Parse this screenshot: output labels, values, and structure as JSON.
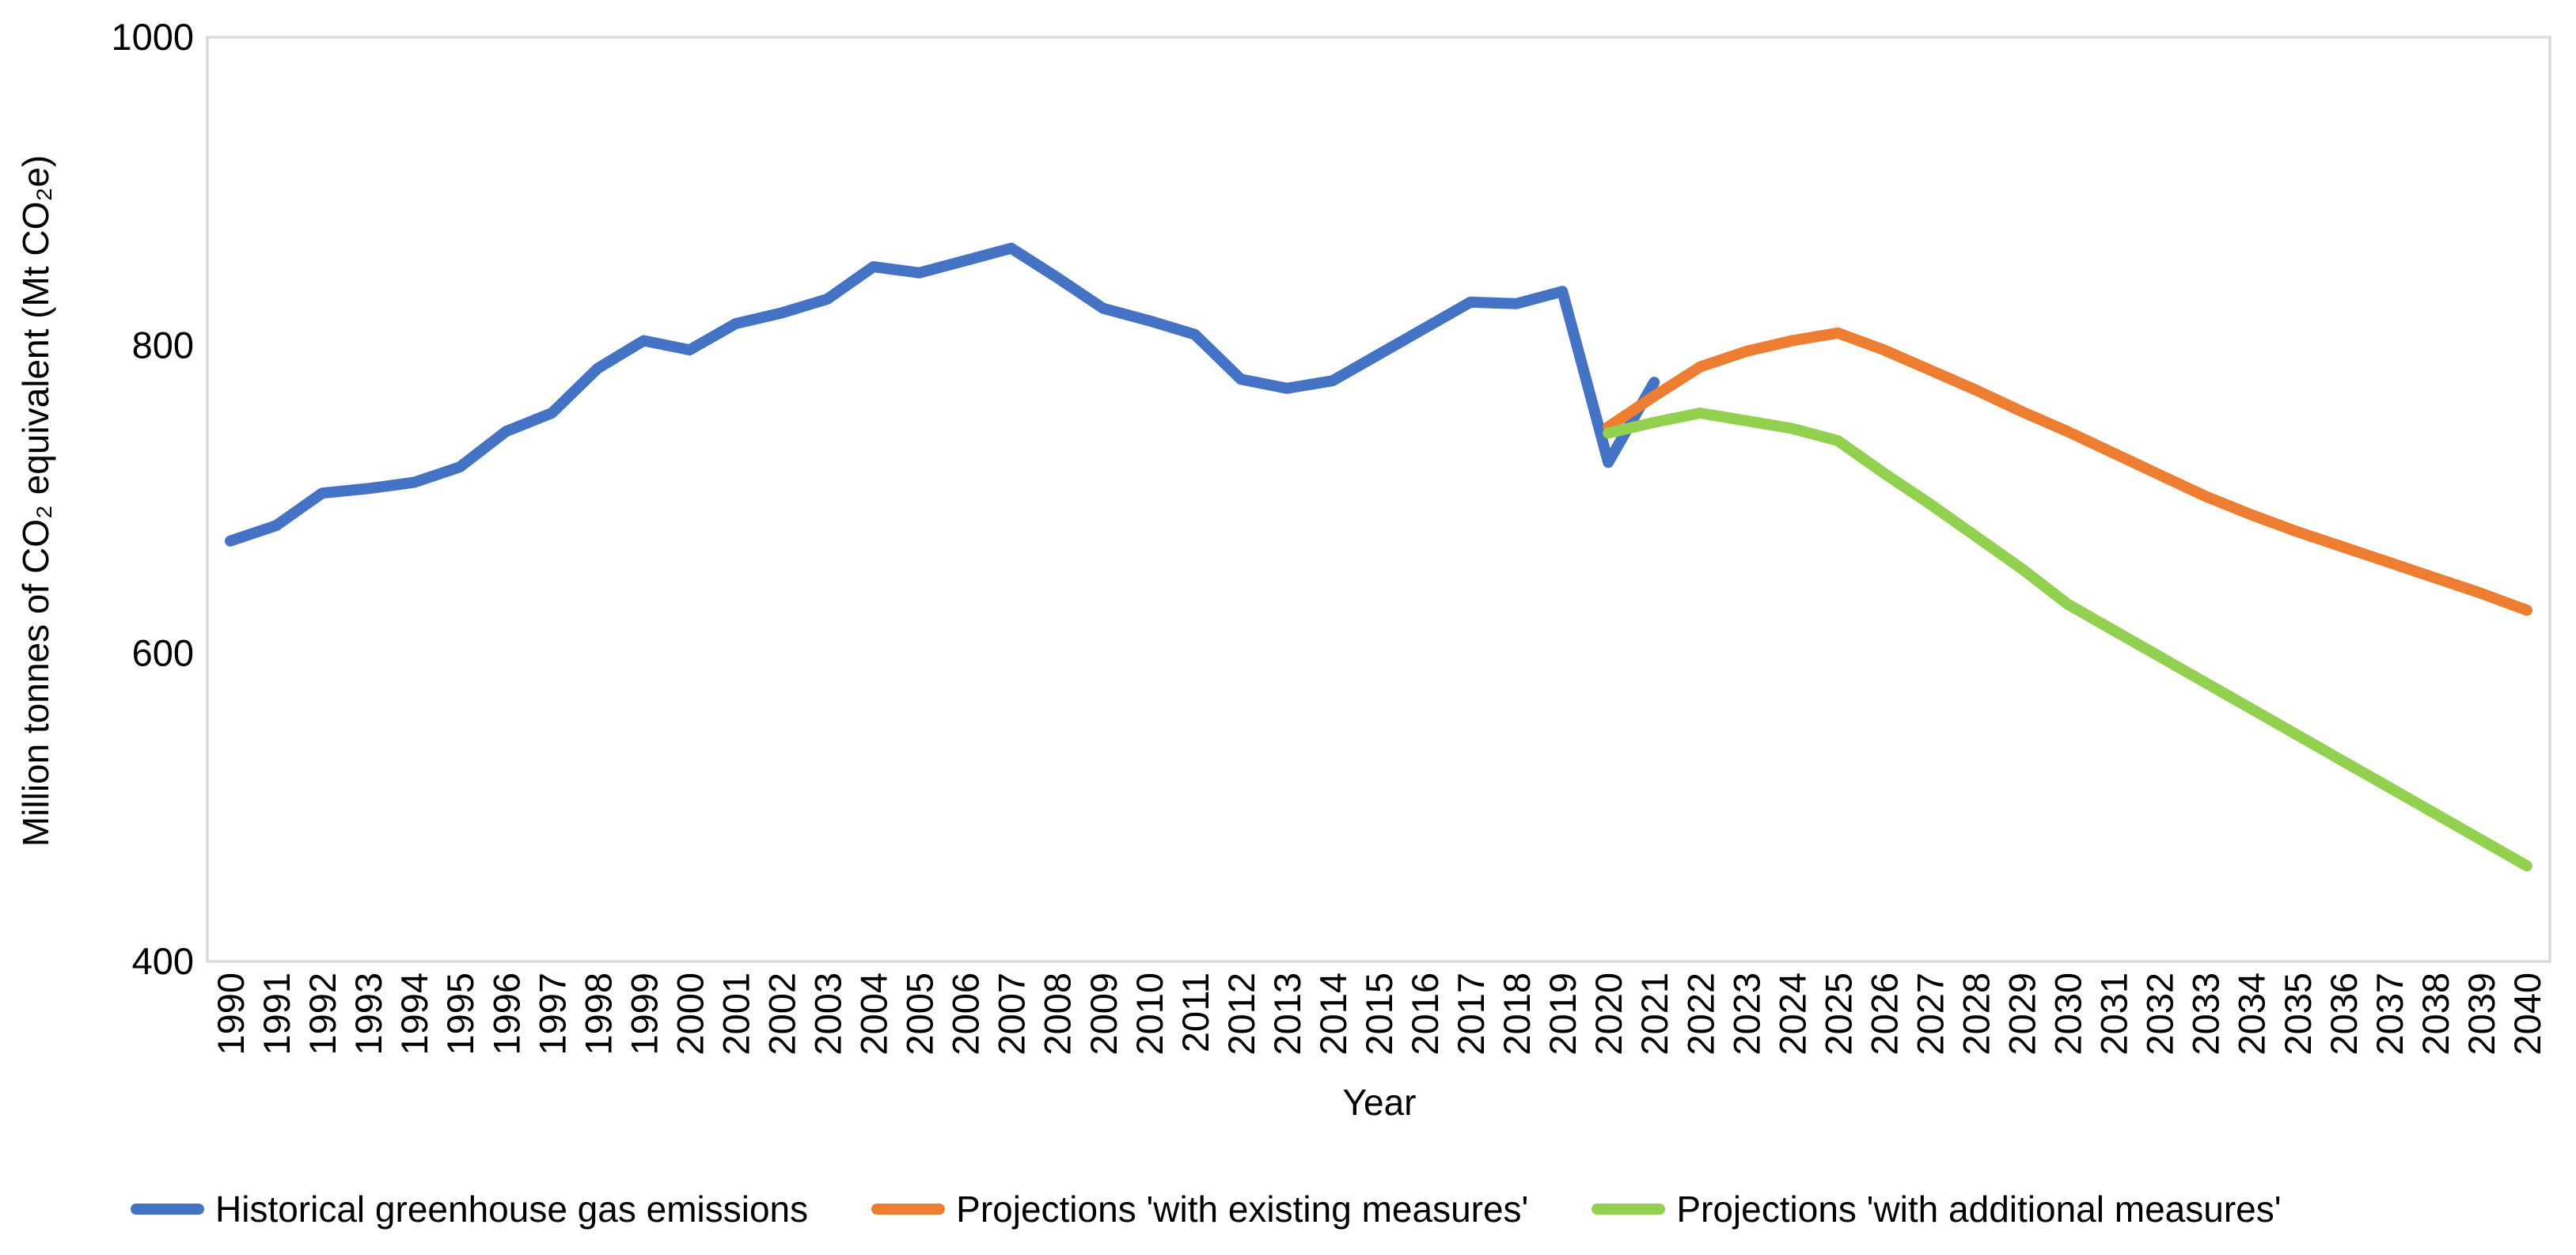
{
  "axes": {
    "x_title": "Year",
    "y_title": "Million tonnes of CO₂ equivalent (Mt CO₂e)"
  },
  "chart_data": {
    "type": "line",
    "title": "",
    "xlabel": "Year",
    "ylabel": "Million tonnes of CO₂ equivalent (Mt CO₂e)",
    "ylim": [
      400,
      1000
    ],
    "yticks": [
      400,
      600,
      800,
      1000
    ],
    "grid": false,
    "legend_position": "bottom",
    "plot_border_color": "#D9D9D9",
    "categories": [
      1990,
      1991,
      1992,
      1993,
      1994,
      1995,
      1996,
      1997,
      1998,
      1999,
      2000,
      2001,
      2002,
      2003,
      2004,
      2005,
      2006,
      2007,
      2008,
      2009,
      2010,
      2011,
      2012,
      2013,
      2014,
      2015,
      2016,
      2017,
      2018,
      2019,
      2020,
      2021,
      2022,
      2023,
      2024,
      2025,
      2026,
      2027,
      2028,
      2029,
      2030,
      2031,
      2032,
      2033,
      2034,
      2035,
      2036,
      2037,
      2038,
      2039,
      2040
    ],
    "series": [
      {
        "name": "Historical greenhouse gas emissions",
        "color": "#4472C4",
        "values": [
          673,
          683,
          704,
          707,
          711,
          721,
          744,
          756,
          785,
          803,
          797,
          814,
          821,
          830,
          851,
          847,
          855,
          863,
          844,
          824,
          816,
          807,
          778,
          772,
          777,
          794,
          811,
          828,
          827,
          835,
          724,
          776,
          null,
          null,
          null,
          null,
          null,
          null,
          null,
          null,
          null,
          null,
          null,
          null,
          null,
          null,
          null,
          null,
          null,
          null,
          null
        ]
      },
      {
        "name": "Projections 'with existing measures'",
        "color": "#ED7D31",
        "values": [
          null,
          null,
          null,
          null,
          null,
          null,
          null,
          null,
          null,
          null,
          null,
          null,
          null,
          null,
          null,
          null,
          null,
          null,
          null,
          null,
          null,
          null,
          null,
          null,
          null,
          null,
          null,
          null,
          null,
          null,
          747,
          767,
          786,
          796,
          803,
          808,
          797,
          784,
          771,
          757,
          744,
          730,
          716,
          702,
          690,
          679,
          669,
          659,
          649,
          639,
          628
        ]
      },
      {
        "name": "Projections 'with additional measures'",
        "color": "#92D050",
        "values": [
          null,
          null,
          null,
          null,
          null,
          null,
          null,
          null,
          null,
          null,
          null,
          null,
          null,
          null,
          null,
          null,
          null,
          null,
          null,
          null,
          null,
          null,
          null,
          null,
          null,
          null,
          null,
          null,
          null,
          null,
          743,
          750,
          756,
          751,
          746,
          738,
          717,
          697,
          676,
          655,
          632,
          615,
          598,
          581,
          564,
          547,
          530,
          513,
          496,
          479,
          462
        ]
      }
    ]
  }
}
